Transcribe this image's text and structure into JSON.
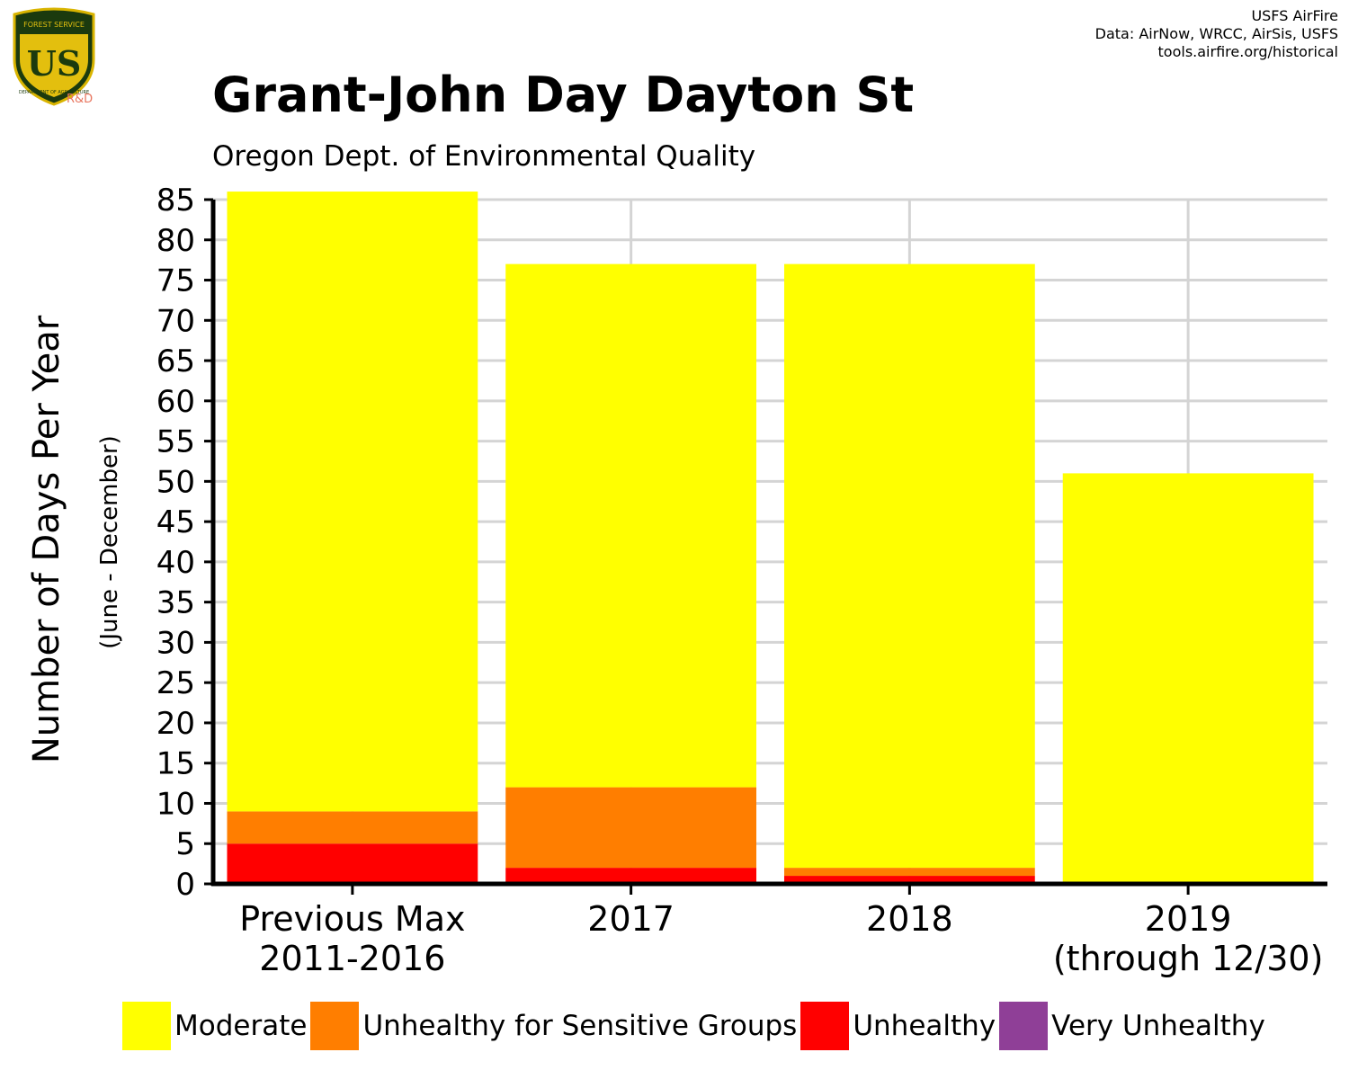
{
  "header": {
    "title": "Grant-John Day Dayton St",
    "subtitle": "Oregon Dept. of Environmental Quality",
    "credits": [
      "USFS AirFire",
      "Data: AirNow, WRCC, AirSis, USFS",
      "tools.airfire.org/historical"
    ],
    "logo": {
      "top_text": "FOREST SERVICE",
      "center_text": "US",
      "bottom_text": "DEPARTMENT OF AGRICULTURE",
      "badge_text": "R&D"
    }
  },
  "colors": {
    "Moderate": "#FFFF00",
    "Unhealthy for Sensitive Groups": "#FF7E00",
    "Unhealthy": "#FF0000",
    "Very Unhealthy": "#8F3F97",
    "grid": "#d4d4d4",
    "axis": "#000000"
  },
  "chart_data": {
    "type": "bar",
    "stacked": true,
    "title": "Grant-John Day Dayton St",
    "subtitle": "Oregon Dept. of Environmental Quality",
    "ylabel": "Number of Days Per Year",
    "ylabel_sub": "(June - December)",
    "ylim": [
      0,
      85
    ],
    "yticks": [
      0,
      5,
      10,
      15,
      20,
      25,
      30,
      35,
      40,
      45,
      50,
      55,
      60,
      65,
      70,
      75,
      80,
      85
    ],
    "grid": true,
    "legend_position": "bottom",
    "categories": [
      [
        "Previous Max",
        "2011-2016"
      ],
      [
        "2017"
      ],
      [
        "2018"
      ],
      [
        "2019",
        "(through 12/30)"
      ]
    ],
    "series": [
      {
        "name": "Unhealthy",
        "values": [
          5,
          2,
          1,
          0
        ]
      },
      {
        "name": "Unhealthy for Sensitive Groups",
        "values": [
          4,
          10,
          1,
          0
        ]
      },
      {
        "name": "Moderate",
        "values": [
          77,
          65,
          75,
          51
        ]
      },
      {
        "name": "Very Unhealthy",
        "values": [
          0,
          0,
          0,
          0
        ]
      }
    ]
  },
  "legend": [
    {
      "label": "Moderate",
      "color": "#FFFF00"
    },
    {
      "label": "Unhealthy for Sensitive Groups",
      "color": "#FF7E00"
    },
    {
      "label": "Unhealthy",
      "color": "#FF0000"
    },
    {
      "label": "Very Unhealthy",
      "color": "#8F3F97"
    }
  ]
}
